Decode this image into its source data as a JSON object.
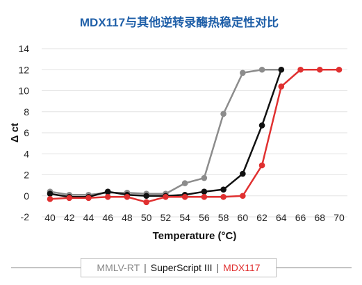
{
  "chart_data": {
    "type": "line",
    "title": "MDX117与其他逆转录酶热稳定性对比",
    "xlabel": "Temperature (°C)",
    "ylabel": "Δ ct",
    "x": [
      40,
      42,
      44,
      46,
      48,
      50,
      52,
      54,
      56,
      58,
      60,
      62,
      64,
      66,
      68,
      70
    ],
    "xlim": [
      40,
      70
    ],
    "ylim": [
      -2,
      14
    ],
    "yticks": [
      "-2",
      "0",
      "2",
      "4",
      "6",
      "8",
      "10",
      "12",
      "14"
    ],
    "xticks": [
      "40",
      "42",
      "44",
      "46",
      "48",
      "50",
      "52",
      "54",
      "56",
      "58",
      "60",
      "62",
      "64",
      "66",
      "68",
      "70"
    ],
    "grid": true,
    "legend_position": "bottom",
    "series": [
      {
        "name": "MMLV-RT",
        "color": "#8c8c8c",
        "x": [
          40,
          42,
          44,
          46,
          48,
          50,
          52,
          54,
          56,
          58,
          60,
          62,
          64
        ],
        "values": [
          0.4,
          0.1,
          0.1,
          0.3,
          0.3,
          0.2,
          0.2,
          1.2,
          1.7,
          7.8,
          11.7,
          12.0,
          12.0
        ]
      },
      {
        "name": "SuperScript III",
        "color": "#111111",
        "x": [
          40,
          42,
          44,
          46,
          48,
          50,
          52,
          54,
          56,
          58,
          60,
          62,
          64
        ],
        "values": [
          0.2,
          -0.1,
          -0.1,
          0.4,
          0.1,
          0.0,
          0.0,
          0.1,
          0.4,
          0.6,
          2.1,
          6.7,
          12.0
        ]
      },
      {
        "name": "MDX117",
        "color": "#e03030",
        "x": [
          40,
          42,
          44,
          46,
          48,
          50,
          52,
          54,
          56,
          58,
          60,
          62,
          64,
          66,
          68,
          70
        ],
        "values": [
          -0.3,
          -0.2,
          -0.2,
          -0.1,
          -0.1,
          -0.6,
          -0.1,
          -0.1,
          -0.1,
          -0.1,
          0.0,
          2.9,
          10.4,
          12.0,
          12.0,
          12.0
        ]
      }
    ]
  }
}
